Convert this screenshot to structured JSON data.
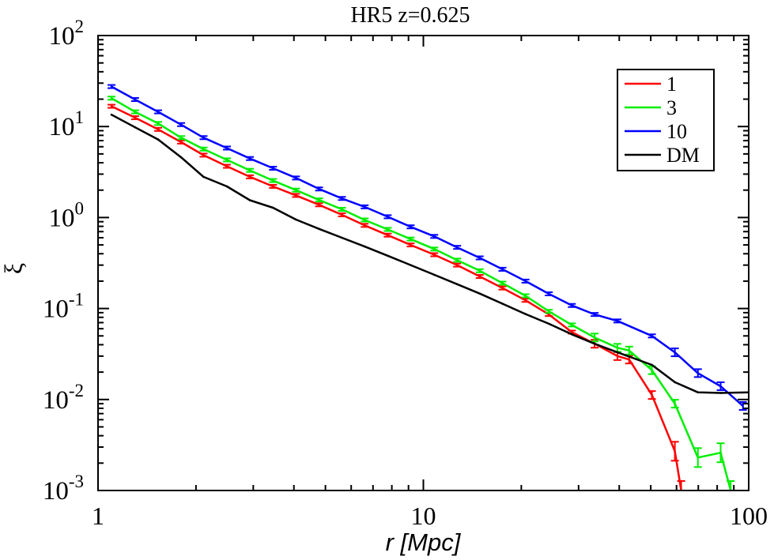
{
  "chart_data": {
    "type": "line",
    "title": "HR5 z=0.625",
    "xlabel": "r [Mpc]",
    "ylabel": "ξ",
    "xscale": "log",
    "yscale": "log",
    "xlim": [
      1,
      100
    ],
    "ylim": [
      0.001,
      100
    ],
    "x_ticks": [
      {
        "value": 1,
        "label": "1"
      },
      {
        "value": 10,
        "label": "10"
      },
      {
        "value": 100,
        "label": "100"
      }
    ],
    "y_ticks": [
      {
        "value": 0.001,
        "base": "10",
        "exp": "-3"
      },
      {
        "value": 0.01,
        "base": "10",
        "exp": "-2"
      },
      {
        "value": 0.1,
        "base": "10",
        "exp": "-1"
      },
      {
        "value": 1,
        "base": "10",
        "exp": "0"
      },
      {
        "value": 10,
        "base": "10",
        "exp": "1"
      },
      {
        "value": 100,
        "base": "10",
        "exp": "2"
      }
    ],
    "grid": false,
    "legend_position": "top-right",
    "series": [
      {
        "name": "1",
        "color": "#ff0000",
        "error_bars": true,
        "x": [
          1.1,
          1.3,
          1.53,
          1.8,
          2.11,
          2.49,
          2.93,
          3.45,
          4.06,
          4.78,
          5.62,
          6.6,
          7.77,
          9.14,
          10.8,
          12.7,
          14.9,
          17.5,
          20.6,
          24.3,
          28.6,
          33.6,
          39.5,
          42.9,
          50.4,
          59.3,
          62.0
        ],
        "y": [
          16.7,
          12.5,
          9.3,
          6.75,
          4.85,
          3.66,
          2.8,
          2.2,
          1.75,
          1.38,
          1.07,
          0.82,
          0.64,
          0.5,
          0.39,
          0.3,
          0.225,
          0.168,
          0.123,
          0.086,
          0.055,
          0.041,
          0.03,
          0.0275,
          0.0112,
          0.0027,
          0.001
        ]
      },
      {
        "name": "3",
        "color": "#00ee00",
        "error_bars": true,
        "x": [
          1.1,
          1.3,
          1.53,
          1.8,
          2.11,
          2.49,
          2.93,
          3.45,
          4.06,
          4.78,
          5.62,
          6.6,
          7.77,
          9.14,
          10.8,
          12.7,
          14.9,
          17.5,
          20.6,
          24.3,
          28.6,
          33.6,
          39.5,
          42.9,
          50.4,
          59.3,
          69.8,
          82.0,
          88.0
        ],
        "y": [
          20.5,
          14.5,
          10.8,
          7.55,
          5.65,
          4.3,
          3.3,
          2.55,
          2.0,
          1.56,
          1.23,
          0.94,
          0.74,
          0.58,
          0.45,
          0.34,
          0.26,
          0.19,
          0.138,
          0.093,
          0.066,
          0.048,
          0.037,
          0.0345,
          0.021,
          0.009,
          0.0023,
          0.0026,
          0.001
        ]
      },
      {
        "name": "10",
        "color": "#0000ff",
        "error_bars": true,
        "x": [
          1.1,
          1.3,
          1.53,
          1.8,
          2.11,
          2.49,
          2.93,
          3.45,
          4.06,
          4.78,
          5.62,
          6.6,
          7.77,
          9.14,
          10.8,
          12.7,
          14.9,
          17.5,
          20.6,
          24.3,
          28.6,
          33.6,
          39.5,
          50.4,
          59.3,
          69.8,
          82.0,
          96.0
        ],
        "y": [
          27.5,
          19.8,
          14.5,
          10.5,
          7.55,
          5.8,
          4.45,
          3.48,
          2.72,
          2.06,
          1.62,
          1.31,
          1.02,
          0.79,
          0.62,
          0.47,
          0.36,
          0.27,
          0.2,
          0.145,
          0.108,
          0.086,
          0.073,
          0.05,
          0.033,
          0.0195,
          0.014,
          0.0085
        ]
      },
      {
        "name": "DM",
        "color": "#000000",
        "error_bars": false,
        "x": [
          1.1,
          1.3,
          1.53,
          1.8,
          2.11,
          2.49,
          2.93,
          3.45,
          4.06,
          4.78,
          5.62,
          6.6,
          7.77,
          9.14,
          10.8,
          12.7,
          14.9,
          17.5,
          20.6,
          24.3,
          28.6,
          33.6,
          39.5,
          50.4,
          59.3,
          69.8,
          82.0,
          100.0
        ],
        "y": [
          13.5,
          9.8,
          7.2,
          4.6,
          2.8,
          2.2,
          1.55,
          1.28,
          0.95,
          0.75,
          0.6,
          0.48,
          0.38,
          0.3,
          0.235,
          0.185,
          0.146,
          0.113,
          0.087,
          0.068,
          0.052,
          0.041,
          0.033,
          0.024,
          0.0155,
          0.012,
          0.0118,
          0.012
        ]
      }
    ]
  }
}
